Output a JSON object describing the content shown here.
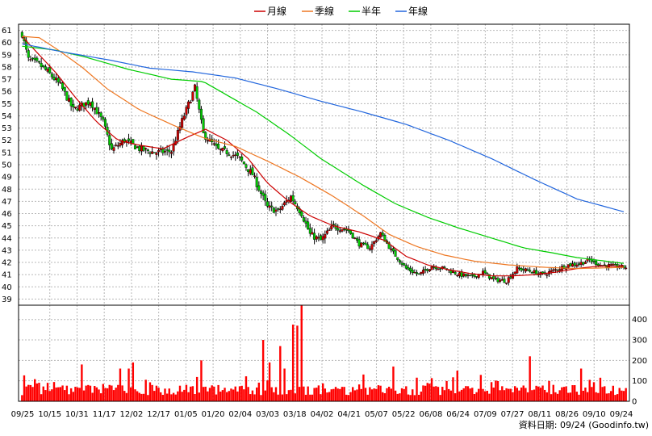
{
  "legend": [
    {
      "label": "月線",
      "color": "#cc0000"
    },
    {
      "label": "季線",
      "color": "#ee7722"
    },
    {
      "label": "半年",
      "color": "#00cc00"
    },
    {
      "label": "年線",
      "color": "#2266dd"
    }
  ],
  "credit": "資料日期: 09/24  (Goodinfo.tw)",
  "chart_data": [
    {
      "type": "candlestick",
      "x_ticks": [
        "09/25",
        "10/15",
        "10/31",
        "11/17",
        "12/02",
        "12/17",
        "01/05",
        "01/20",
        "02/04",
        "03/03",
        "03/18",
        "04/02",
        "04/21",
        "05/07",
        "05/22",
        "06/08",
        "06/24",
        "07/09",
        "07/27",
        "08/11",
        "08/26",
        "09/10",
        "09/24"
      ],
      "y_ticks": [
        39,
        40,
        41,
        42,
        43,
        44,
        45,
        46,
        47,
        48,
        49,
        50,
        51,
        52,
        53,
        54,
        55,
        56,
        57,
        58,
        59,
        60,
        61
      ],
      "ylim": [
        38.5,
        61.5
      ],
      "grid": true,
      "up_color": "#cc0000",
      "down_color": "#00cc00",
      "close_anchors": [
        [
          0,
          60.7
        ],
        [
          3,
          58.6
        ],
        [
          8,
          58.2
        ],
        [
          12,
          57.6
        ],
        [
          18,
          56.5
        ],
        [
          24,
          54.5
        ],
        [
          32,
          55.2
        ],
        [
          38,
          53.5
        ],
        [
          42,
          51.2
        ],
        [
          48,
          52.0
        ],
        [
          55,
          51.3
        ],
        [
          62,
          51.0
        ],
        [
          70,
          51.1
        ],
        [
          75,
          53.6
        ],
        [
          81,
          56.3
        ],
        [
          85,
          52.5
        ],
        [
          92,
          51.2
        ],
        [
          97,
          51.0
        ],
        [
          102,
          50.5
        ],
        [
          108,
          49.2
        ],
        [
          115,
          46.5
        ],
        [
          120,
          46.2
        ],
        [
          126,
          47.4
        ],
        [
          131,
          46.0
        ],
        [
          135,
          44.3
        ],
        [
          140,
          43.8
        ],
        [
          146,
          45.0
        ],
        [
          153,
          44.6
        ],
        [
          158,
          43.5
        ],
        [
          163,
          43.2
        ],
        [
          168,
          44.4
        ],
        [
          173,
          43.0
        ],
        [
          180,
          41.5
        ],
        [
          186,
          41.0
        ],
        [
          192,
          41.7
        ],
        [
          198,
          41.5
        ],
        [
          205,
          41.0
        ],
        [
          211,
          40.8
        ],
        [
          216,
          41.2
        ],
        [
          221,
          40.6
        ],
        [
          227,
          40.5
        ],
        [
          232,
          41.5
        ],
        [
          238,
          41.3
        ],
        [
          244,
          41.0
        ],
        [
          250,
          41.4
        ],
        [
          256,
          41.8
        ],
        [
          261,
          41.9
        ],
        [
          266,
          42.2
        ],
        [
          271,
          41.8
        ],
        [
          277,
          41.7
        ],
        [
          283,
          41.6
        ]
      ],
      "moving_averages": [
        {
          "name": "月線",
          "color": "#cc0000",
          "points": [
            [
              0,
              60.5
            ],
            [
              8,
              59.0
            ],
            [
              16,
              57.5
            ],
            [
              25,
              55.5
            ],
            [
              35,
              53.5
            ],
            [
              45,
              52.0
            ],
            [
              55,
              51.6
            ],
            [
              66,
              51.3
            ],
            [
              78,
              52.3
            ],
            [
              86,
              52.9
            ],
            [
              96,
              52.0
            ],
            [
              106,
              50.5
            ],
            [
              115,
              48.5
            ],
            [
              125,
              47.0
            ],
            [
              135,
              45.8
            ],
            [
              146,
              45.0
            ],
            [
              158,
              44.5
            ],
            [
              170,
              43.8
            ],
            [
              180,
              42.5
            ],
            [
              190,
              41.8
            ],
            [
              200,
              41.4
            ],
            [
              210,
              41.1
            ],
            [
              220,
              40.9
            ],
            [
              230,
              40.9
            ],
            [
              240,
              41.0
            ],
            [
              250,
              41.2
            ],
            [
              260,
              41.5
            ],
            [
              270,
              41.7
            ],
            [
              283,
              41.7
            ]
          ]
        },
        {
          "name": "季線",
          "color": "#ee7722",
          "points": [
            [
              0,
              60.5
            ],
            [
              8,
              60.4
            ],
            [
              16,
              59.5
            ],
            [
              28,
              58.0
            ],
            [
              40,
              56.2
            ],
            [
              55,
              54.5
            ],
            [
              70,
              53.3
            ],
            [
              85,
              52.2
            ],
            [
              100,
              51.5
            ],
            [
              115,
              50.3
            ],
            [
              130,
              49.0
            ],
            [
              145,
              47.5
            ],
            [
              160,
              45.8
            ],
            [
              172,
              44.3
            ],
            [
              185,
              43.3
            ],
            [
              198,
              42.6
            ],
            [
              212,
              42.1
            ],
            [
              228,
              41.8
            ],
            [
              245,
              41.6
            ],
            [
              260,
              41.5
            ],
            [
              283,
              41.6
            ]
          ]
        },
        {
          "name": "半年",
          "color": "#00cc00",
          "points": [
            [
              0,
              59.7
            ],
            [
              15,
              59.4
            ],
            [
              30,
              58.8
            ],
            [
              50,
              57.8
            ],
            [
              70,
              57.0
            ],
            [
              85,
              56.8
            ],
            [
              95,
              55.8
            ],
            [
              110,
              54.3
            ],
            [
              125,
              52.5
            ],
            [
              140,
              50.5
            ],
            [
              160,
              48.3
            ],
            [
              175,
              46.8
            ],
            [
              190,
              45.7
            ],
            [
              205,
              44.8
            ],
            [
              220,
              44.0
            ],
            [
              235,
              43.2
            ],
            [
              248,
              42.8
            ],
            [
              260,
              42.4
            ],
            [
              283,
              41.9
            ]
          ]
        },
        {
          "name": "年線",
          "color": "#2266dd",
          "points": [
            [
              0,
              59.9
            ],
            [
              20,
              59.2
            ],
            [
              40,
              58.6
            ],
            [
              60,
              57.9
            ],
            [
              80,
              57.6
            ],
            [
              100,
              57.1
            ],
            [
              120,
              56.2
            ],
            [
              140,
              55.2
            ],
            [
              160,
              54.3
            ],
            [
              180,
              53.3
            ],
            [
              200,
              52.0
            ],
            [
              220,
              50.5
            ],
            [
              240,
              48.8
            ],
            [
              260,
              47.2
            ],
            [
              283,
              46.1
            ]
          ]
        }
      ]
    },
    {
      "type": "bar",
      "y_ticks": [
        0,
        100,
        200,
        300,
        400
      ],
      "ylim": [
        0,
        470
      ],
      "color": "#ff0000",
      "spikes": [
        [
          28,
          180
        ],
        [
          46,
          160
        ],
        [
          50,
          160
        ],
        [
          52,
          190
        ],
        [
          84,
          200
        ],
        [
          113,
          300
        ],
        [
          116,
          190
        ],
        [
          121,
          270
        ],
        [
          123,
          160
        ],
        [
          127,
          375
        ],
        [
          129,
          370
        ],
        [
          131,
          470
        ],
        [
          174,
          170
        ],
        [
          204,
          150
        ],
        [
          238,
          220
        ],
        [
          262,
          160
        ]
      ],
      "base_range": [
        30,
        80
      ]
    }
  ]
}
